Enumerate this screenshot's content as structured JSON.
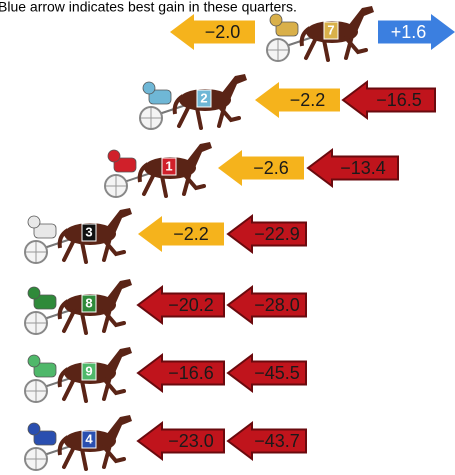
{
  "caption": "Blue arrow indicates best gain in these quarters.",
  "rows": [
    {
      "number": "7",
      "silk": "#d9b04a",
      "arrows": [
        {
          "label": "−2.0",
          "color": "#f5b31c",
          "direction": "left"
        },
        {
          "label": "+1.6",
          "color": "#3b7fe0",
          "direction": "right"
        }
      ]
    },
    {
      "number": "2",
      "silk": "#6fb7d6",
      "arrows": [
        {
          "label": "−2.2",
          "color": "#f5b31c",
          "direction": "left"
        },
        {
          "label": "−16.5",
          "color": "#c0141c",
          "direction": "left"
        }
      ]
    },
    {
      "number": "1",
      "silk": "#d0202a",
      "arrows": [
        {
          "label": "−2.6",
          "color": "#f5b31c",
          "direction": "left"
        },
        {
          "label": "−13.4",
          "color": "#c0141c",
          "direction": "left"
        }
      ]
    },
    {
      "number": "3",
      "silk": "#e8e8e8",
      "arrows": [
        {
          "label": "−2.2",
          "color": "#f5b31c",
          "direction": "left"
        },
        {
          "label": "−22.9",
          "color": "#c0141c",
          "direction": "left"
        }
      ]
    },
    {
      "number": "8",
      "silk": "#2f8a3a",
      "arrows": [
        {
          "label": "−20.2",
          "color": "#c0141c",
          "direction": "left"
        },
        {
          "label": "−28.0",
          "color": "#c0141c",
          "direction": "left"
        }
      ]
    },
    {
      "number": "9",
      "silk": "#4fb86a",
      "arrows": [
        {
          "label": "−16.6",
          "color": "#c0141c",
          "direction": "left"
        },
        {
          "label": "−45.5",
          "color": "#c0141c",
          "direction": "left"
        }
      ]
    },
    {
      "number": "4",
      "silk": "#2a4fb0",
      "arrows": [
        {
          "label": "−23.0",
          "color": "#c0141c",
          "direction": "left"
        },
        {
          "label": "−43.7",
          "color": "#c0141c",
          "direction": "left"
        }
      ]
    }
  ]
}
